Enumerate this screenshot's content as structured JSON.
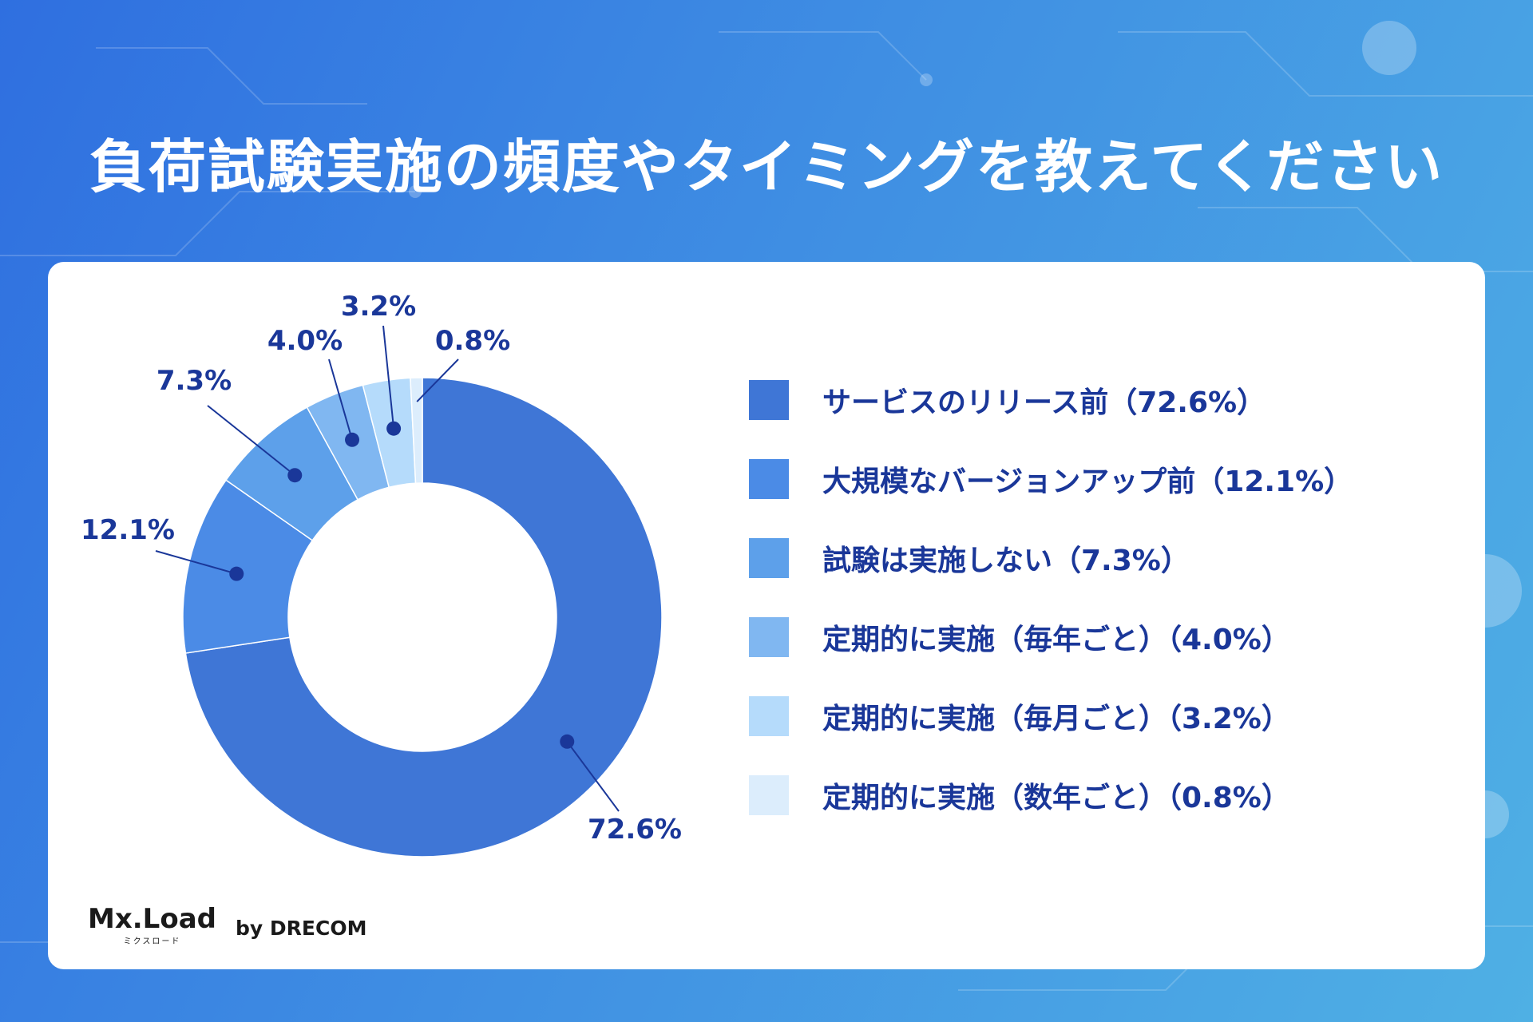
{
  "title": "負荷試験実施の頻度やタイミングを教えてください",
  "colors": {
    "background_start": "#2f6fe0",
    "background_end": "#4fb0e4",
    "card": "#ffffff",
    "label_text": "#1a3799",
    "leader_line": "#1a3799"
  },
  "chart_data": {
    "type": "pie",
    "donut": true,
    "title": "負荷試験実施の頻度やタイミングを教えてください",
    "slices": [
      {
        "name": "サービスのリリース前",
        "value": 72.6,
        "label": "72.6%",
        "legend": "サービスのリリース前（72.6%）",
        "color": "#3f76d6"
      },
      {
        "name": "大規模なバージョンアップ前",
        "value": 12.1,
        "label": "12.1%",
        "legend": "大規模なバージョンアップ前（12.1%）",
        "color": "#4b8be6"
      },
      {
        "name": "試験は実施しない",
        "value": 7.3,
        "label": "7.3%",
        "legend": "試験は実施しない（7.3%）",
        "color": "#5da0ea"
      },
      {
        "name": "定期的に実施（毎年ごと）",
        "value": 4.0,
        "label": "4.0%",
        "legend": "定期的に実施（毎年ごと）（4.0%）",
        "color": "#80b7f1"
      },
      {
        "name": "定期的に実施（毎月ごと）",
        "value": 3.2,
        "label": "3.2%",
        "legend": "定期的に実施（毎月ごと）（3.2%）",
        "color": "#b5dbfb"
      },
      {
        "name": "定期的に実施（数年ごと）",
        "value": 0.8,
        "label": "0.8%",
        "legend": "定期的に実施（数年ごと）（0.8%）",
        "color": "#dcedfc"
      }
    ],
    "legend_position": "right"
  },
  "brand": {
    "logo_text": "Mx.Load",
    "logo_subtext": "ミクスロード",
    "byline": "by DRECOM"
  }
}
